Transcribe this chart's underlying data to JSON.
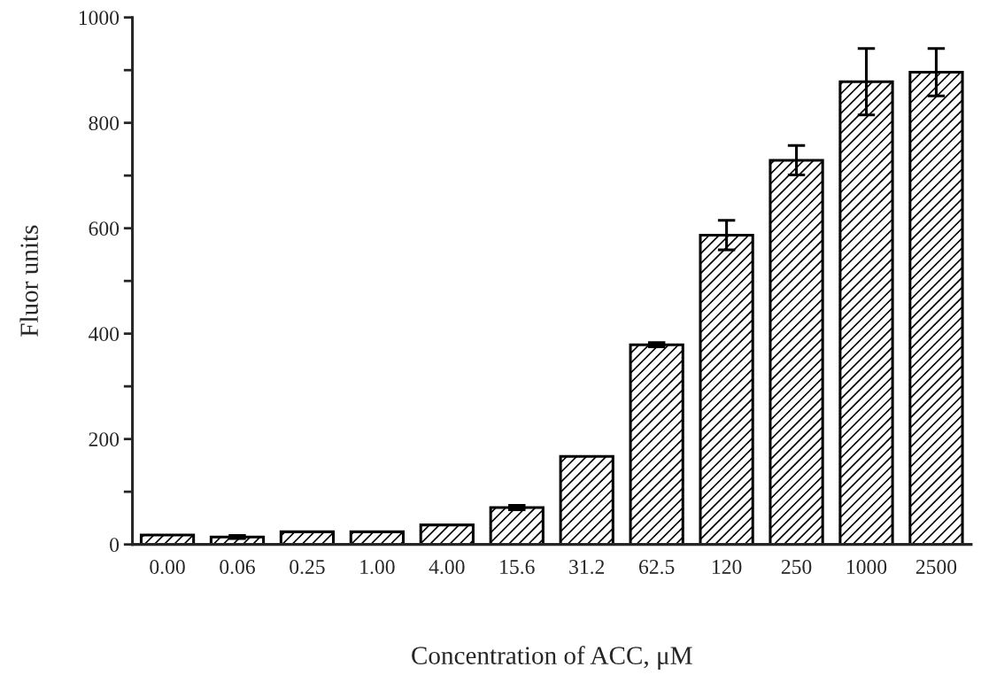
{
  "chart_data": {
    "type": "bar",
    "xlabel": "Concentration of ACC, μM",
    "ylabel": "Fluor units",
    "categories": [
      "0.00",
      "0.06",
      "0.25",
      "1.00",
      "4.00",
      "15.6",
      "31.2",
      "62.5",
      "120",
      "250",
      "1000",
      "2500"
    ],
    "values": [
      18,
      14,
      24,
      24,
      37,
      70,
      167,
      379,
      587,
      729,
      878,
      896
    ],
    "errors": [
      null,
      3,
      null,
      null,
      null,
      4,
      null,
      4,
      28,
      28,
      63,
      45
    ],
    "color": "#000000",
    "ylim": [
      0,
      1000
    ],
    "yticks": [
      0,
      {
        "value": 100,
        "label": null
      },
      200,
      {
        "value": 300,
        "label": null
      },
      400,
      {
        "value": 500,
        "label": null
      },
      600,
      {
        "value": 700,
        "label": null
      },
      800,
      {
        "value": 900,
        "label": null
      },
      1000
    ],
    "grid": false,
    "legend": false
  }
}
